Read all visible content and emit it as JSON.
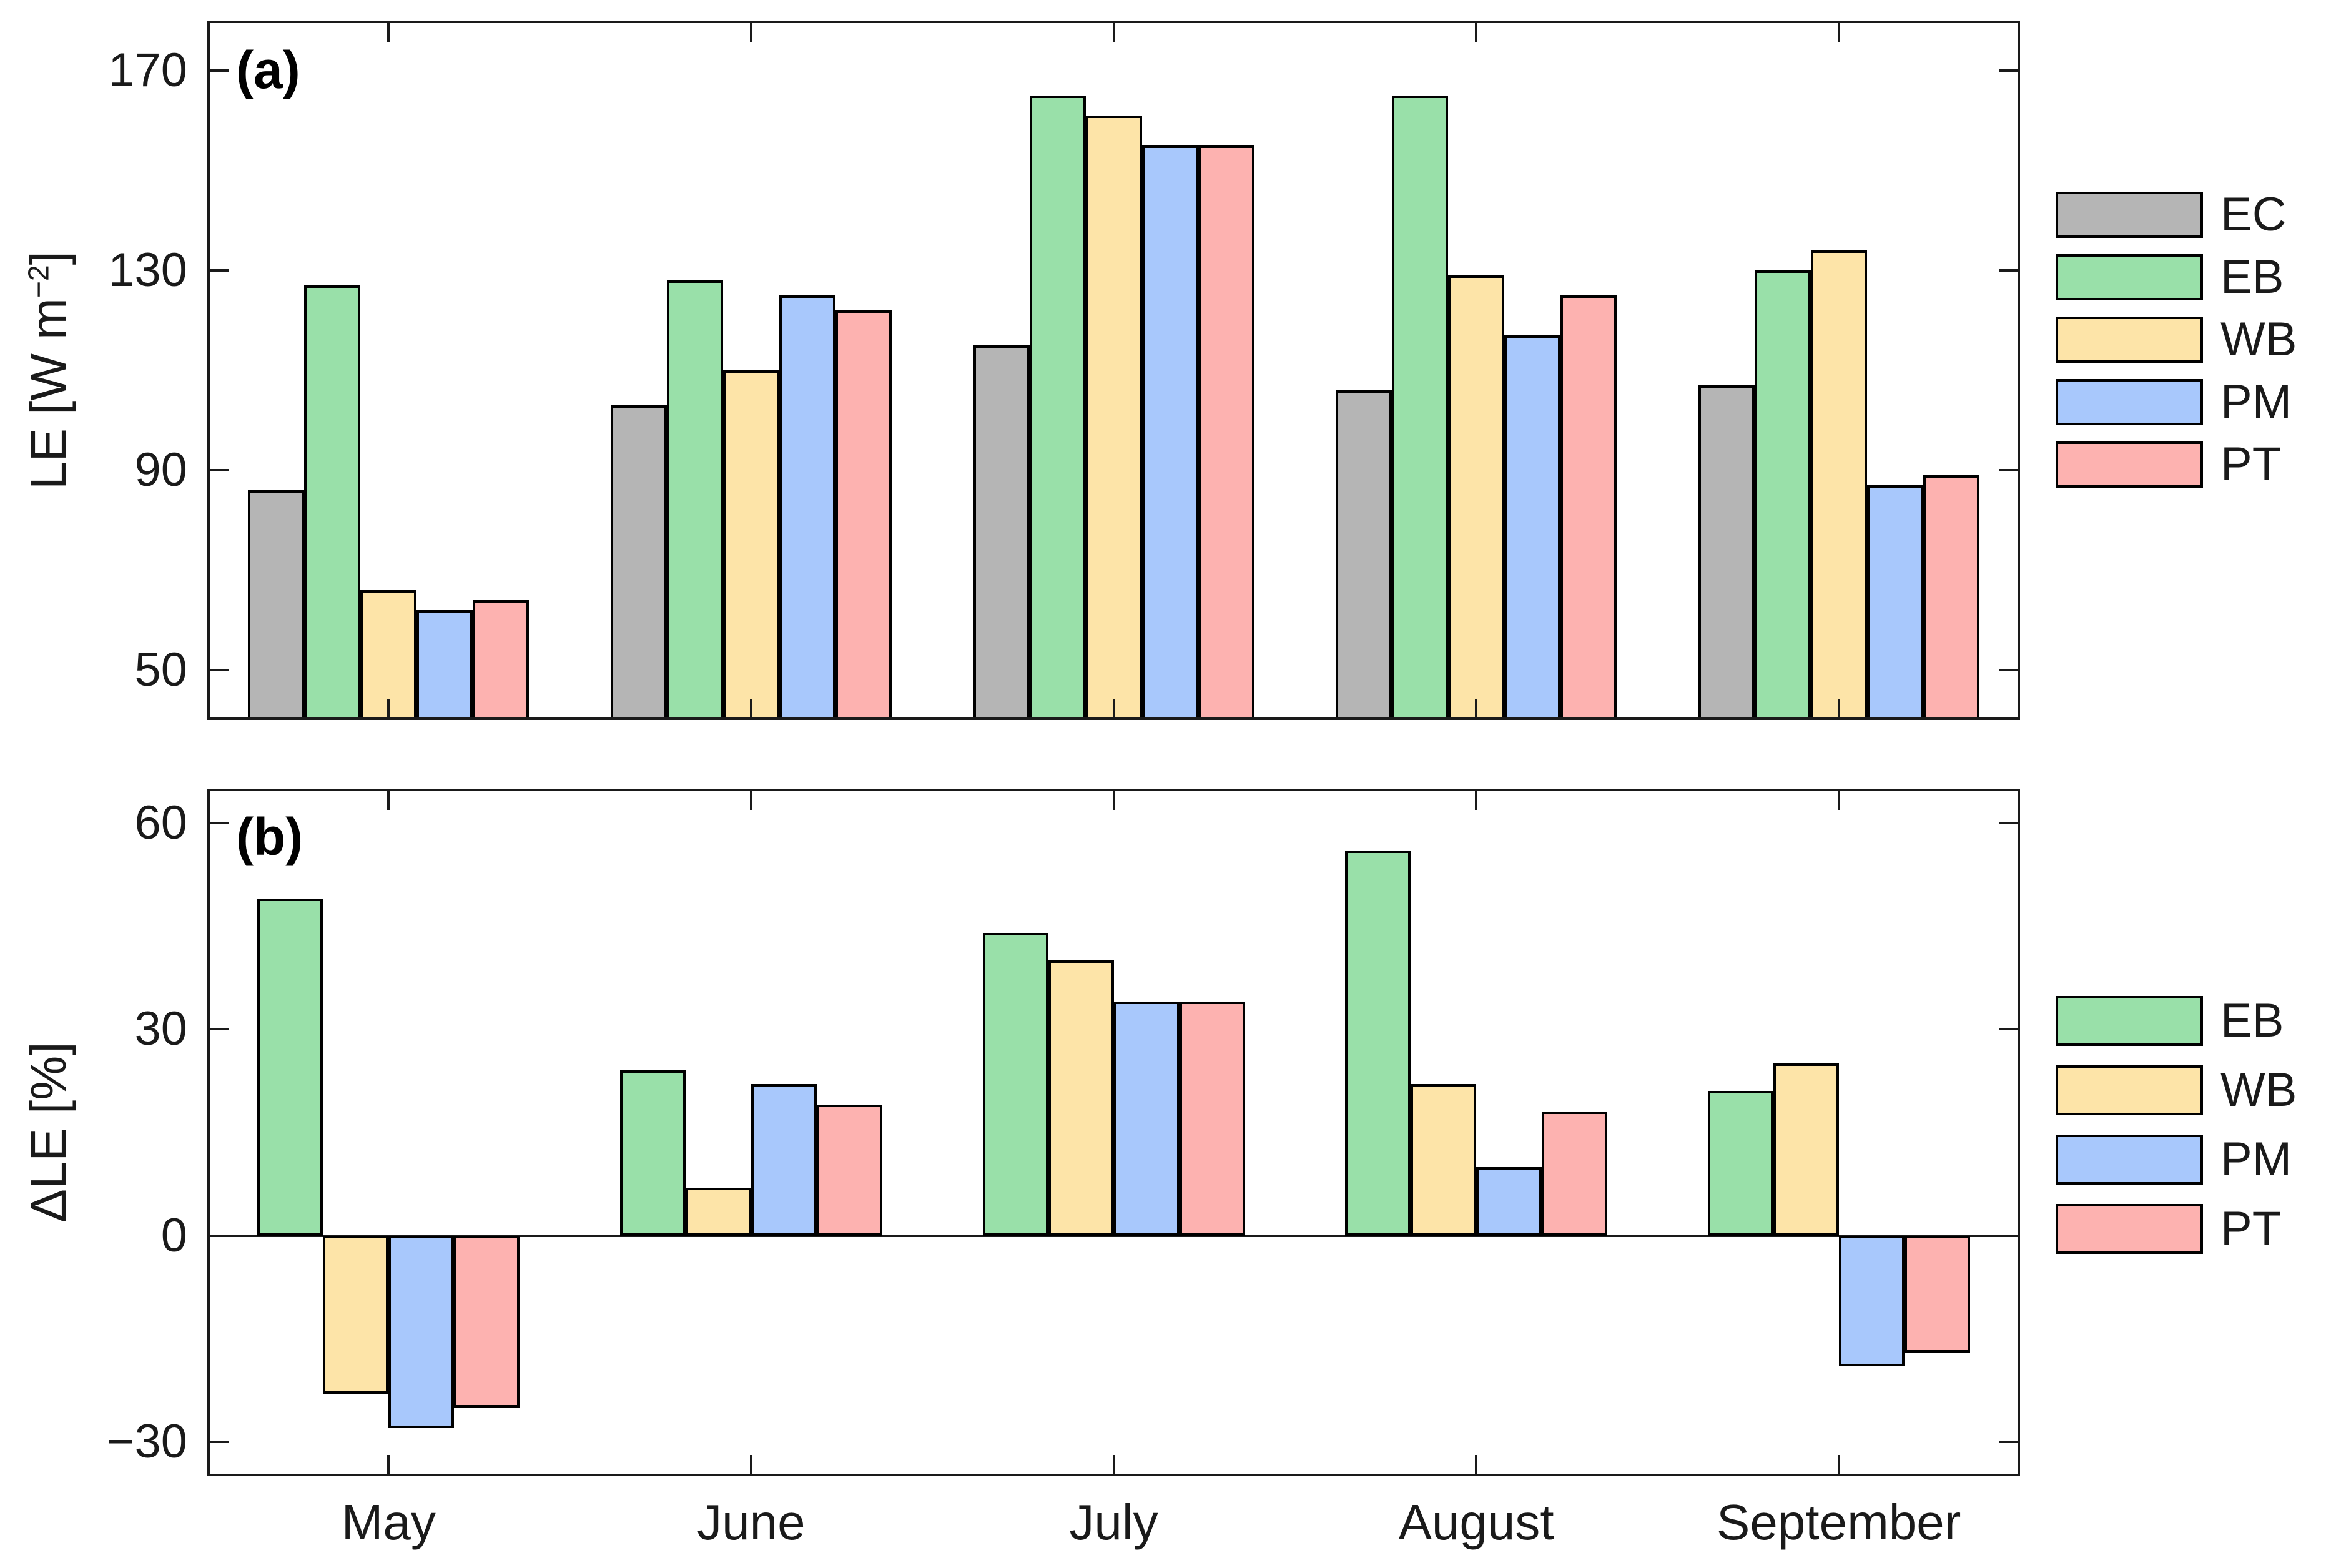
{
  "labels": {
    "panel_a_letter": "(a)",
    "panel_b_letter": "(b)",
    "ylabel_a_main": "LE [W m",
    "ylabel_a_sup": "−2",
    "ylabel_a_end": "]",
    "ylabel_b": "ΔLE [%]"
  },
  "chart_data": [
    {
      "type": "bar",
      "panel": "a",
      "title": "(a)",
      "xlabel": "",
      "ylabel": "LE [W m^-2]",
      "categories": [
        "May",
        "June",
        "July",
        "August",
        "September"
      ],
      "series": [
        {
          "name": "EC",
          "color": "#b5b5b5",
          "values": [
            86,
            103,
            115,
            106,
            107
          ]
        },
        {
          "name": "EB",
          "color": "#99e0a9",
          "values": [
            127,
            128,
            165,
            165,
            130
          ]
        },
        {
          "name": "WB",
          "color": "#fde4a8",
          "values": [
            66,
            110,
            161,
            129,
            134
          ]
        },
        {
          "name": "PM",
          "color": "#a8c8fc",
          "values": [
            62,
            125,
            155,
            117,
            87
          ]
        },
        {
          "name": "PT",
          "color": "#fdb2b0",
          "values": [
            64,
            122,
            155,
            125,
            89
          ]
        }
      ],
      "ylim": [
        40,
        180
      ],
      "yticks": [
        50,
        90,
        130,
        170
      ],
      "grid": false,
      "legend_position": "right-outside"
    },
    {
      "type": "bar",
      "panel": "b",
      "title": "(b)",
      "xlabel": "",
      "ylabel": "ΔLE [%]",
      "categories": [
        "May",
        "June",
        "July",
        "August",
        "September"
      ],
      "series": [
        {
          "name": "EB",
          "color": "#99e0a9",
          "values": [
            49,
            24,
            44,
            56,
            21
          ]
        },
        {
          "name": "WB",
          "color": "#fde4a8",
          "values": [
            -23,
            7,
            40,
            22,
            25
          ]
        },
        {
          "name": "PM",
          "color": "#a8c8fc",
          "values": [
            -28,
            22,
            34,
            10,
            -19
          ]
        },
        {
          "name": "PT",
          "color": "#fdb2b0",
          "values": [
            -25,
            19,
            34,
            18,
            -17
          ]
        }
      ],
      "ylim": [
        -35,
        65
      ],
      "yticks": [
        -30,
        0,
        30,
        60
      ],
      "grid": false,
      "legend_position": "right-outside"
    }
  ]
}
